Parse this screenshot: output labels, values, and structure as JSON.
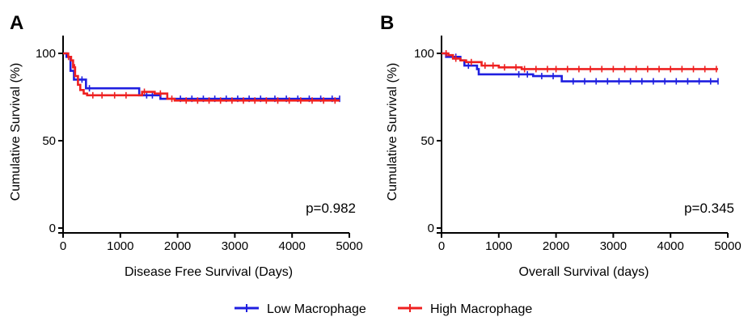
{
  "chart_data": [
    {
      "type": "line",
      "panel": "A",
      "xlabel": "Disease Free Survival (Days)",
      "ylabel": "Cumulative Survival (%)",
      "xlim": [
        0,
        5000
      ],
      "ylim": [
        0,
        100
      ],
      "xticks": [
        0,
        1000,
        2000,
        3000,
        4000,
        5000
      ],
      "yticks": [
        0,
        50,
        100
      ],
      "annotation": "p=0.982",
      "series": [
        {
          "name": "Low Macrophage",
          "color": "#1f1fe0",
          "steps": [
            [
              0,
              100
            ],
            [
              60,
              98
            ],
            [
              130,
              90
            ],
            [
              190,
              85
            ],
            [
              280,
              85
            ],
            [
              400,
              80
            ],
            [
              1300,
              80
            ],
            [
              1330,
              76
            ],
            [
              1650,
              76
            ],
            [
              1700,
              74
            ],
            [
              4830,
              74
            ]
          ],
          "censored": [
            330,
            460,
            1460,
            1560,
            2050,
            2250,
            2450,
            2650,
            2850,
            3050,
            3250,
            3450,
            3700,
            3900,
            4100,
            4300,
            4500,
            4700,
            4830
          ]
        },
        {
          "name": "High Macrophage",
          "color": "#ee2020",
          "steps": [
            [
              0,
              100
            ],
            [
              90,
              98
            ],
            [
              140,
              96
            ],
            [
              175,
              92
            ],
            [
              210,
              87
            ],
            [
              260,
              82
            ],
            [
              300,
              79
            ],
            [
              360,
              77
            ],
            [
              420,
              76
            ],
            [
              1300,
              76
            ],
            [
              1380,
              78
            ],
            [
              1600,
              77
            ],
            [
              1820,
              74
            ],
            [
              1950,
              73
            ],
            [
              4830,
              73
            ]
          ],
          "censored": [
            95,
            200,
            520,
            680,
            900,
            1100,
            1420,
            1700,
            1900,
            2150,
            2350,
            2550,
            2750,
            2950,
            3150,
            3350,
            3550,
            3750,
            3950,
            4150,
            4350,
            4550,
            4750
          ]
        }
      ]
    },
    {
      "type": "line",
      "panel": "B",
      "xlabel": "Overall Survival (days)",
      "ylabel": "Cumulative Survival (%)",
      "xlim": [
        0,
        5000
      ],
      "ylim": [
        0,
        100
      ],
      "xticks": [
        0,
        1000,
        2000,
        3000,
        4000,
        5000
      ],
      "yticks": [
        0,
        50,
        100
      ],
      "annotation": "p=0.345",
      "series": [
        {
          "name": "Low Macrophage",
          "color": "#1f1fe0",
          "steps": [
            [
              0,
              100
            ],
            [
              80,
              98
            ],
            [
              330,
              96
            ],
            [
              400,
              93
            ],
            [
              620,
              91
            ],
            [
              650,
              88
            ],
            [
              1550,
              88
            ],
            [
              1600,
              87
            ],
            [
              2080,
              87
            ],
            [
              2100,
              84
            ],
            [
              4830,
              84
            ]
          ],
          "censored": [
            250,
            470,
            1350,
            1500,
            1750,
            1950,
            2300,
            2500,
            2700,
            2900,
            3100,
            3300,
            3500,
            3700,
            3900,
            4100,
            4300,
            4500,
            4700,
            4830
          ]
        },
        {
          "name": "High Macrophage",
          "color": "#ee2020",
          "steps": [
            [
              0,
              100
            ],
            [
              120,
              99
            ],
            [
              200,
              97
            ],
            [
              330,
              96
            ],
            [
              430,
              95
            ],
            [
              700,
              93
            ],
            [
              1000,
              92
            ],
            [
              1400,
              91
            ],
            [
              4830,
              91
            ]
          ],
          "censored": [
            80,
            250,
            520,
            760,
            900,
            1100,
            1300,
            1450,
            1650,
            1850,
            2000,
            2200,
            2400,
            2600,
            2800,
            3000,
            3200,
            3400,
            3600,
            3800,
            4000,
            4200,
            4400,
            4600,
            4800
          ]
        }
      ]
    }
  ],
  "legend": {
    "position": "bottom-center",
    "items": [
      {
        "label": "Low Macrophage",
        "color": "#1f1fe0"
      },
      {
        "label": "High Macrophage",
        "color": "#ee2020"
      }
    ]
  }
}
